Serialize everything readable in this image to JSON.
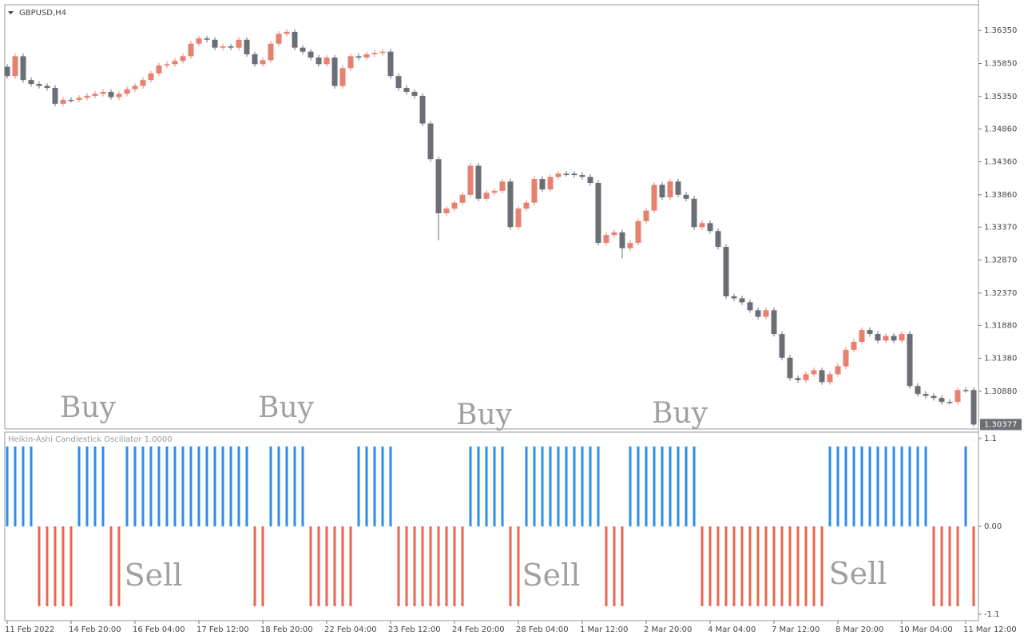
{
  "chart_data": [
    {
      "type": "candlestick",
      "title": "GBPUSD,H4",
      "up_color": "#e8806f",
      "down_color": "#6b6e75",
      "last_price": 1.30377,
      "categories": [
        "11 Feb 2022",
        null,
        null,
        null,
        null,
        null,
        null,
        null,
        "14 Feb 20:00",
        null,
        null,
        null,
        null,
        null,
        null,
        null,
        "16 Feb 04:00",
        null,
        null,
        null,
        null,
        null,
        null,
        null,
        "17 Feb 12:00",
        null,
        null,
        null,
        null,
        null,
        null,
        null,
        "18 Feb 20:00",
        null,
        null,
        null,
        null,
        null,
        null,
        null,
        "22 Feb 04:00",
        null,
        null,
        null,
        null,
        null,
        null,
        null,
        "23 Feb 12:00",
        null,
        null,
        null,
        null,
        null,
        null,
        null,
        "24 Feb 20:00",
        null,
        null,
        null,
        null,
        null,
        null,
        null,
        "28 Feb 04:00",
        null,
        null,
        null,
        null,
        null,
        null,
        null,
        "1 Mar 12:00",
        null,
        null,
        null,
        null,
        null,
        null,
        null,
        "2 Mar 20:00",
        null,
        null,
        null,
        null,
        null,
        null,
        null,
        "4 Mar 04:00",
        null,
        null,
        null,
        null,
        null,
        null,
        null,
        "7 Mar 12:00",
        null,
        null,
        null,
        null,
        null,
        null,
        null,
        "8 Mar 20:00",
        null,
        null,
        null,
        null,
        null,
        null,
        null,
        "10 Mar 04:00",
        null,
        null,
        null,
        null,
        null,
        null,
        null,
        "11 Mar 12:00",
        null
      ],
      "open": [
        1.358,
        1.3566,
        1.3596,
        1.356,
        1.3554,
        1.3551,
        1.3548,
        1.3524,
        1.353,
        1.353,
        1.3533,
        1.3536,
        1.3539,
        1.3542,
        1.3534,
        1.3539,
        1.3546,
        1.3551,
        1.356,
        1.357,
        1.3582,
        1.3584,
        1.3589,
        1.3596,
        1.3615,
        1.3623,
        1.3621,
        1.3609,
        1.3611,
        1.3609,
        1.3621,
        1.3599,
        1.3584,
        1.359,
        1.3615,
        1.363,
        1.3633,
        1.3609,
        1.3603,
        1.3594,
        1.3584,
        1.3594,
        1.3551,
        1.3578,
        1.3596,
        1.3594,
        1.3599,
        1.3601,
        1.3603,
        1.3566,
        1.3548,
        1.3542,
        1.3536,
        1.3494,
        1.344,
        1.3358,
        1.3365,
        1.3374,
        1.3386,
        1.343,
        1.338,
        1.3389,
        1.3392,
        1.3406,
        1.3337,
        1.3365,
        1.3374,
        1.341,
        1.3394,
        1.3413,
        1.3418,
        1.3418,
        1.3416,
        1.3413,
        1.3404,
        1.3313,
        1.3325,
        1.3329,
        1.3305,
        1.3313,
        1.3346,
        1.3362,
        1.3401,
        1.3382,
        1.3406,
        1.3386,
        1.338,
        1.3337,
        1.3343,
        1.3331,
        1.3307,
        1.3232,
        1.3229,
        1.3223,
        1.3211,
        1.3201,
        1.3211,
        1.3175,
        1.3139,
        1.3108,
        1.3105,
        1.3114,
        1.312,
        1.3102,
        1.3114,
        1.3126,
        1.3151,
        1.3163,
        1.3181,
        1.3175,
        1.3165,
        1.3172,
        1.3165,
        1.3175,
        1.3096,
        1.3084,
        1.3081,
        1.3078,
        1.3072,
        1.3072,
        1.309,
        1.309
      ],
      "high": [
        1.3584,
        1.36,
        1.36,
        1.3564,
        1.3558,
        1.3555,
        1.3552,
        1.3534,
        1.3534,
        1.3537,
        1.354,
        1.3543,
        1.3546,
        1.3546,
        1.3543,
        1.355,
        1.3555,
        1.3564,
        1.3574,
        1.3586,
        1.3588,
        1.3593,
        1.36,
        1.3619,
        1.3627,
        1.3627,
        1.3625,
        1.3615,
        1.3615,
        1.3625,
        1.3625,
        1.3603,
        1.3594,
        1.3619,
        1.3634,
        1.3637,
        1.3637,
        1.3613,
        1.3607,
        1.3598,
        1.3598,
        1.3598,
        1.3582,
        1.36,
        1.36,
        1.3603,
        1.3605,
        1.3607,
        1.3607,
        1.357,
        1.3552,
        1.3546,
        1.354,
        1.3498,
        1.3444,
        1.3369,
        1.3378,
        1.339,
        1.3434,
        1.3434,
        1.3393,
        1.3396,
        1.341,
        1.341,
        1.3369,
        1.3378,
        1.3414,
        1.3414,
        1.3417,
        1.3422,
        1.3422,
        1.3422,
        1.342,
        1.3417,
        1.3408,
        1.3329,
        1.3333,
        1.3333,
        1.3317,
        1.335,
        1.3366,
        1.3405,
        1.3405,
        1.341,
        1.341,
        1.339,
        1.3384,
        1.3347,
        1.3347,
        1.3335,
        1.3311,
        1.3236,
        1.3233,
        1.3227,
        1.3215,
        1.3215,
        1.3215,
        1.3179,
        1.3143,
        1.3112,
        1.3118,
        1.3124,
        1.3124,
        1.3118,
        1.313,
        1.3155,
        1.3167,
        1.3185,
        1.3185,
        1.3179,
        1.3176,
        1.3176,
        1.3179,
        1.3179,
        1.31,
        1.3088,
        1.3085,
        1.3082,
        1.3076,
        1.3094,
        1.3094,
        1.3094
      ],
      "low": [
        1.3562,
        1.3562,
        1.3556,
        1.355,
        1.3547,
        1.3544,
        1.352,
        1.352,
        1.3526,
        1.3526,
        1.3529,
        1.3532,
        1.3535,
        1.353,
        1.353,
        1.3535,
        1.3542,
        1.3547,
        1.3556,
        1.3566,
        1.3578,
        1.358,
        1.3585,
        1.3592,
        1.3611,
        1.3617,
        1.3605,
        1.3605,
        1.3605,
        1.3605,
        1.3595,
        1.358,
        1.358,
        1.3586,
        1.3611,
        1.3626,
        1.3605,
        1.3599,
        1.359,
        1.358,
        1.358,
        1.3547,
        1.3547,
        1.3574,
        1.359,
        1.359,
        1.3595,
        1.3597,
        1.3562,
        1.3544,
        1.3538,
        1.3532,
        1.349,
        1.3436,
        1.3317,
        1.3354,
        1.3361,
        1.337,
        1.3382,
        1.3376,
        1.3376,
        1.3385,
        1.3388,
        1.3333,
        1.3333,
        1.3361,
        1.337,
        1.339,
        1.339,
        1.3409,
        1.3414,
        1.3412,
        1.3409,
        1.34,
        1.3309,
        1.3309,
        1.3321,
        1.329,
        1.3301,
        1.3309,
        1.3342,
        1.3358,
        1.3378,
        1.3378,
        1.3382,
        1.3376,
        1.3333,
        1.3333,
        1.3327,
        1.3303,
        1.3228,
        1.3225,
        1.3219,
        1.3207,
        1.3197,
        1.3197,
        1.3171,
        1.3135,
        1.3104,
        1.3101,
        1.3101,
        1.311,
        1.3098,
        1.3098,
        1.311,
        1.3122,
        1.3147,
        1.3159,
        1.3171,
        1.3161,
        1.3161,
        1.3161,
        1.3161,
        1.3092,
        1.308,
        1.3077,
        1.3074,
        1.3068,
        1.3068,
        1.3068,
        1.3086,
        1.3034
      ],
      "close": [
        1.3566,
        1.3596,
        1.356,
        1.3554,
        1.3551,
        1.3548,
        1.3524,
        1.353,
        1.353,
        1.3533,
        1.3536,
        1.3539,
        1.3542,
        1.3534,
        1.3539,
        1.3546,
        1.3551,
        1.356,
        1.357,
        1.3582,
        1.3584,
        1.3589,
        1.3596,
        1.3615,
        1.3623,
        1.3621,
        1.3609,
        1.3611,
        1.3609,
        1.3621,
        1.3599,
        1.3584,
        1.359,
        1.3615,
        1.363,
        1.3633,
        1.3609,
        1.3603,
        1.3594,
        1.3584,
        1.3594,
        1.3551,
        1.3578,
        1.3596,
        1.3594,
        1.3599,
        1.3601,
        1.3603,
        1.3566,
        1.3548,
        1.3542,
        1.3536,
        1.3494,
        1.344,
        1.3358,
        1.3365,
        1.3374,
        1.3386,
        1.343,
        1.338,
        1.3389,
        1.3392,
        1.3406,
        1.3337,
        1.3365,
        1.3374,
        1.341,
        1.3394,
        1.3413,
        1.3418,
        1.3418,
        1.3416,
        1.3413,
        1.3404,
        1.3313,
        1.3325,
        1.3329,
        1.3305,
        1.3313,
        1.3346,
        1.3362,
        1.3401,
        1.3382,
        1.3406,
        1.3386,
        1.338,
        1.3337,
        1.3343,
        1.3331,
        1.3307,
        1.3232,
        1.3229,
        1.3223,
        1.3211,
        1.3201,
        1.3211,
        1.3175,
        1.3139,
        1.3108,
        1.3105,
        1.3114,
        1.312,
        1.3102,
        1.3114,
        1.3126,
        1.3151,
        1.3163,
        1.3181,
        1.3175,
        1.3165,
        1.3172,
        1.3165,
        1.3175,
        1.3096,
        1.3084,
        1.3081,
        1.3078,
        1.3072,
        1.3072,
        1.309,
        1.309,
        1.30377
      ],
      "ylim": [
        1.3031,
        1.3674
      ],
      "yticks": [
        {
          "value": 1.3635,
          "label": "1.36350"
        },
        {
          "value": 1.3585,
          "label": "1.35850"
        },
        {
          "value": 1.3535,
          "label": "1.35350"
        },
        {
          "value": 1.3486,
          "label": "1.34860"
        },
        {
          "value": 1.3436,
          "label": "1.34360"
        },
        {
          "value": 1.3386,
          "label": "1.33860"
        },
        {
          "value": 1.3337,
          "label": "1.33370"
        },
        {
          "value": 1.3287,
          "label": "1.32870"
        },
        {
          "value": 1.3237,
          "label": "1.32370"
        },
        {
          "value": 1.3188,
          "label": "1.31880"
        },
        {
          "value": 1.3138,
          "label": "1.31380"
        },
        {
          "value": 1.3088,
          "label": "1.30880"
        }
      ],
      "annotations": [
        "Buy",
        "Buy",
        "Buy",
        "Buy"
      ]
    },
    {
      "type": "bar",
      "title": "Heikin-Ashi Candlestick Oscillator 1.0000",
      "up_color": "#2e8de6",
      "down_color": "#e8664f",
      "values": [
        1,
        1,
        1,
        1,
        -1,
        -1,
        -1,
        -1,
        -1,
        1,
        1,
        1,
        1,
        -1,
        -1,
        1,
        1,
        1,
        1,
        1,
        1,
        1,
        1,
        1,
        1,
        1,
        1,
        1,
        1,
        1,
        1,
        -1,
        -1,
        1,
        1,
        1,
        1,
        1,
        -1,
        -1,
        -1,
        -1,
        -1,
        -1,
        1,
        1,
        1,
        1,
        1,
        -1,
        -1,
        -1,
        -1,
        -1,
        -1,
        -1,
        -1,
        -1,
        1,
        1,
        1,
        1,
        1,
        -1,
        -1,
        1,
        1,
        1,
        1,
        1,
        1,
        1,
        1,
        1,
        1,
        -1,
        -1,
        -1,
        1,
        1,
        1,
        1,
        1,
        1,
        1,
        1,
        1,
        -1,
        -1,
        -1,
        -1,
        -1,
        -1,
        -1,
        -1,
        -1,
        -1,
        -1,
        -1,
        -1,
        -1,
        -1,
        -1,
        1,
        1,
        1,
        1,
        1,
        1,
        1,
        1,
        1,
        1,
        1,
        1,
        1,
        -1,
        -1,
        -1,
        -1,
        1,
        -1
      ],
      "ylim": [
        -1.18,
        1.18
      ],
      "yticks": [
        1.1,
        {
          "value": 0,
          "label": "0.00"
        },
        -1.1
      ],
      "annotations": [
        "Sell",
        "Sell",
        "Sell"
      ]
    }
  ]
}
